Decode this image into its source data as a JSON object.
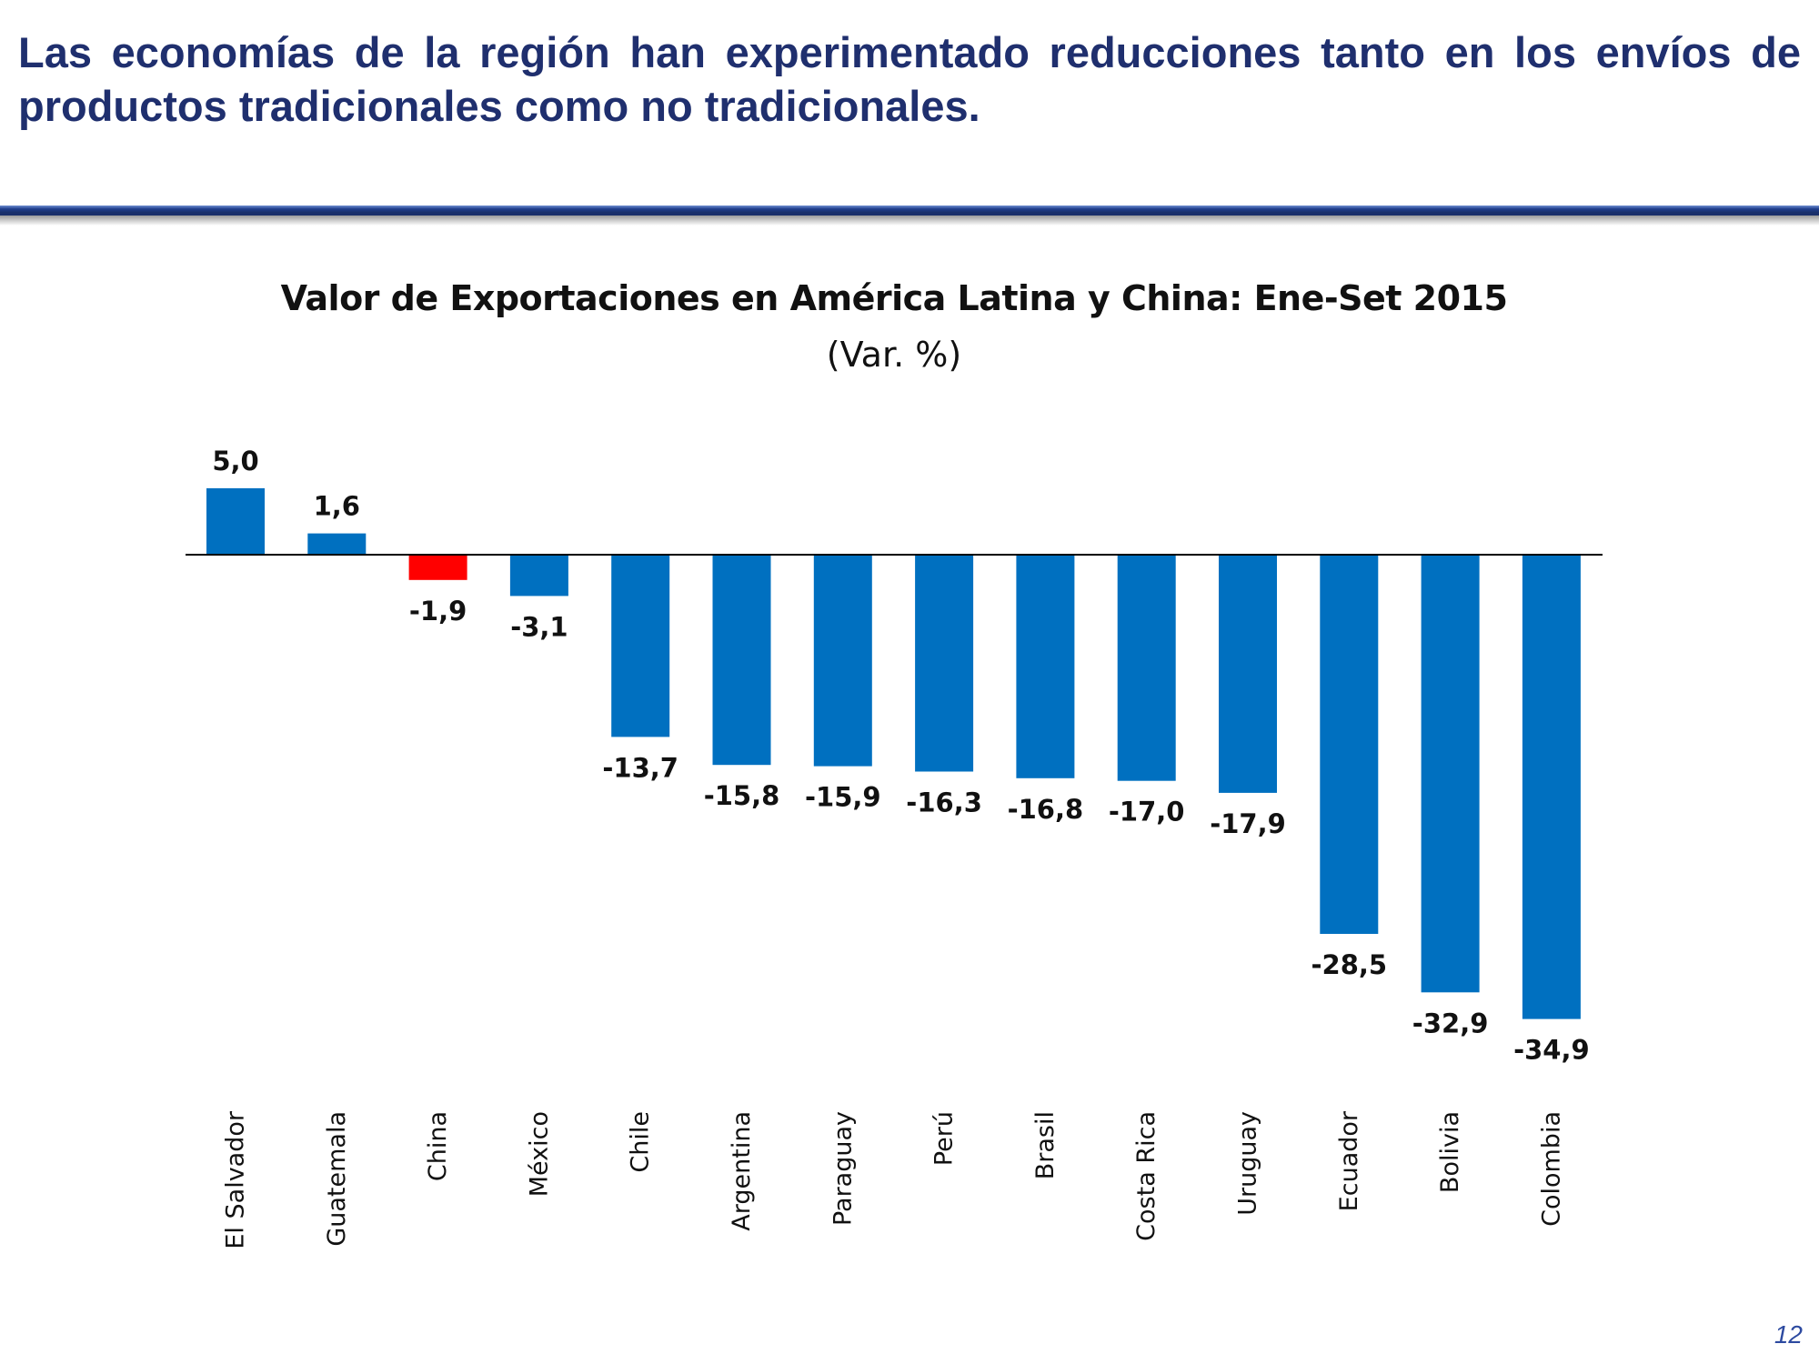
{
  "slide": {
    "headline": "Las economías de la región han experimentado reducciones tanto en los envíos de productos tradicionales como no tradicionales.",
    "page_number": "12"
  },
  "colors": {
    "headline": "#1f2f6e",
    "bar_default": "#0070c0",
    "bar_highlight": "#ff0000",
    "divider": "#1f3d8c"
  },
  "chart_data": {
    "type": "bar",
    "title": "Valor de Exportaciones en América Latina y China: Ene-Set 2015",
    "subtitle": "(Var. %)",
    "xlabel": "",
    "ylabel": "",
    "categories": [
      "El Salvador",
      "Guatemala",
      "China",
      "México",
      "Chile",
      "Argentina",
      "Paraguay",
      "Perú",
      "Brasil",
      "Costa Rica",
      "Uruguay",
      "Ecuador",
      "Bolivia",
      "Colombia"
    ],
    "values": [
      5.0,
      1.6,
      -1.9,
      -3.1,
      -13.7,
      -15.8,
      -15.9,
      -16.3,
      -16.8,
      -17.0,
      -17.9,
      -28.5,
      -32.9,
      -34.9
    ],
    "value_labels": [
      "5,0",
      "1,6",
      "-1,9",
      "-3,1",
      "-13,7",
      "-15,8",
      "-15,9",
      "-16,3",
      "-16,8",
      "-17,0",
      "-17,9",
      "-28,5",
      "-32,9",
      "-34,9"
    ],
    "highlight_category": "China",
    "ylim": [
      -35,
      5
    ],
    "grid": false,
    "legend": "none"
  }
}
